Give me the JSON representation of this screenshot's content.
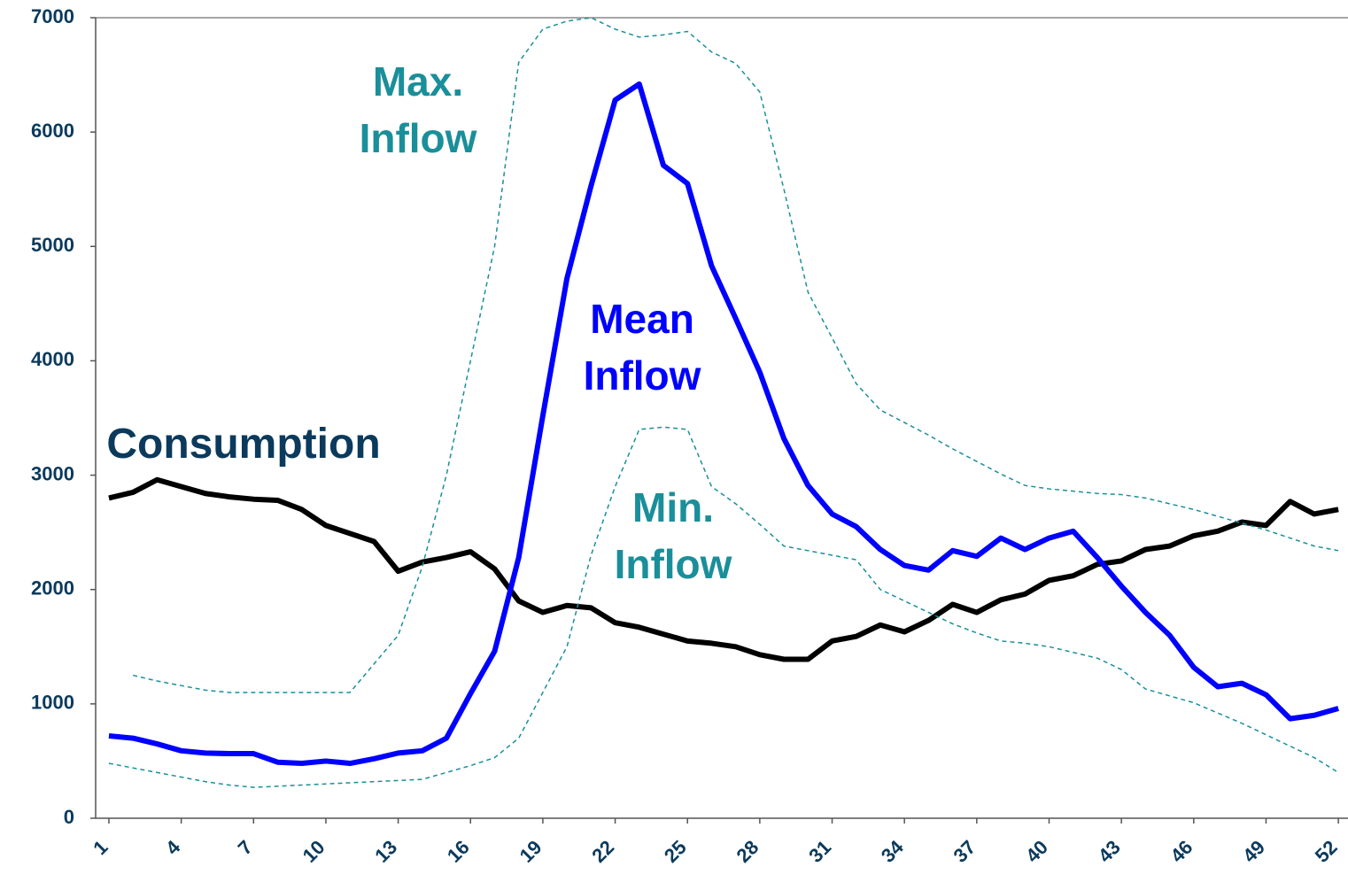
{
  "chart_data": {
    "type": "line",
    "x": [
      1,
      2,
      3,
      4,
      5,
      6,
      7,
      8,
      9,
      10,
      11,
      12,
      13,
      14,
      15,
      16,
      17,
      18,
      19,
      20,
      21,
      22,
      23,
      24,
      25,
      26,
      27,
      28,
      29,
      30,
      31,
      32,
      33,
      34,
      35,
      36,
      37,
      38,
      39,
      40,
      41,
      42,
      43,
      44,
      45,
      46,
      47,
      48,
      49,
      50,
      51,
      52
    ],
    "xlim": [
      0.45,
      52.4
    ],
    "xticks": [
      1,
      4,
      7,
      10,
      13,
      16,
      19,
      22,
      25,
      28,
      31,
      34,
      37,
      40,
      43,
      46,
      49,
      52
    ],
    "ylim": [
      0,
      7000
    ],
    "yticks": [
      0,
      1000,
      2000,
      3000,
      4000,
      5000,
      6000,
      7000
    ],
    "series": [
      {
        "name": "Consumption",
        "color": "#000000",
        "label_color": "#0b3a5c",
        "dashed": false,
        "values": [
          2800,
          2850,
          2960,
          2900,
          2840,
          2810,
          2790,
          2780,
          2700,
          2560,
          2490,
          2420,
          2160,
          2240,
          2280,
          2330,
          2180,
          1900,
          1800,
          1860,
          1840,
          1710,
          1670,
          1610,
          1550,
          1530,
          1500,
          1430,
          1390,
          1390,
          1550,
          1590,
          1690,
          1630,
          1730,
          1870,
          1800,
          1910,
          1960,
          2080,
          2120,
          2220,
          2250,
          2350,
          2380,
          2470,
          2510,
          2590,
          2560,
          2770,
          2660,
          2700
        ]
      },
      {
        "name": "Mean Inflow",
        "color": "#0000ff",
        "label_color": "#0000ff",
        "dashed": false,
        "values": [
          720,
          700,
          650,
          590,
          570,
          565,
          565,
          490,
          480,
          500,
          480,
          520,
          570,
          590,
          700,
          1090,
          1460,
          2280,
          3520,
          4720,
          5530,
          6280,
          6420,
          5710,
          5550,
          4830,
          4370,
          3900,
          3320,
          2910,
          2660,
          2550,
          2350,
          2210,
          2170,
          2340,
          2290,
          2450,
          2350,
          2450,
          2510,
          2280,
          2030,
          1800,
          1600,
          1320,
          1150,
          1180,
          1080,
          870,
          900,
          960
        ]
      },
      {
        "name": "Max. Inflow",
        "color": "#1a8f9a",
        "label_color": "#1a8f9a",
        "dashed": true,
        "values": [
          null,
          1250,
          1200,
          1160,
          1120,
          1100,
          1100,
          1100,
          1100,
          1100,
          1100,
          1350,
          1600,
          2200,
          3000,
          4000,
          5000,
          6610,
          6900,
          6970,
          7000,
          6900,
          6830,
          6850,
          6880,
          6700,
          6600,
          6350,
          5500,
          4600,
          4200,
          3800,
          3570,
          3460,
          3350,
          3230,
          3120,
          3010,
          2910,
          2880,
          2860,
          2840,
          2830,
          2800,
          2750,
          2700,
          2640,
          2580,
          2520,
          2450,
          2380,
          2340
        ]
      },
      {
        "name": "Min. Inflow",
        "color": "#1a8f9a",
        "label_color": "#1a8f9a",
        "dashed": true,
        "values": [
          480,
          440,
          400,
          360,
          320,
          290,
          270,
          280,
          290,
          300,
          310,
          320,
          330,
          340,
          400,
          460,
          530,
          700,
          1100,
          1500,
          2300,
          2900,
          3400,
          3420,
          3400,
          2900,
          2750,
          2570,
          2380,
          2340,
          2300,
          2260,
          2000,
          1900,
          1800,
          1700,
          1620,
          1550,
          1530,
          1500,
          1450,
          1400,
          1300,
          1130,
          1070,
          1010,
          920,
          830,
          730,
          630,
          530,
          400
        ]
      }
    ]
  }
}
